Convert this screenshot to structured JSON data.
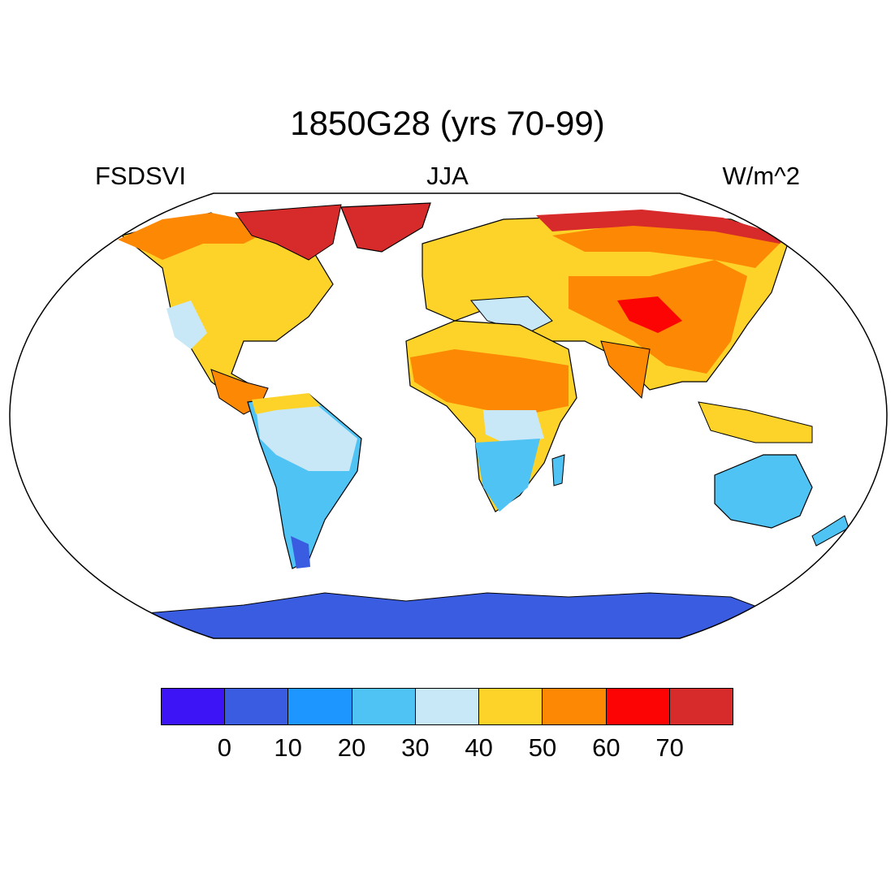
{
  "title": "1850G28 (yrs 70-99)",
  "left_label": "FSDSVI",
  "center_label": "JJA",
  "right_label": "W/m^2",
  "colorbar": {
    "colors": [
      "#3c14f5",
      "#3a5ce0",
      "#1e96ff",
      "#50c3f5",
      "#c8e8f7",
      "#fdd32a",
      "#fc8804",
      "#fc0404",
      "#d72b2b"
    ],
    "ticks": [
      "0",
      "10",
      "20",
      "30",
      "40",
      "50",
      "60",
      "70"
    ]
  },
  "map": {
    "projection": "Robinson",
    "ocean_color": "#ffffff"
  }
}
